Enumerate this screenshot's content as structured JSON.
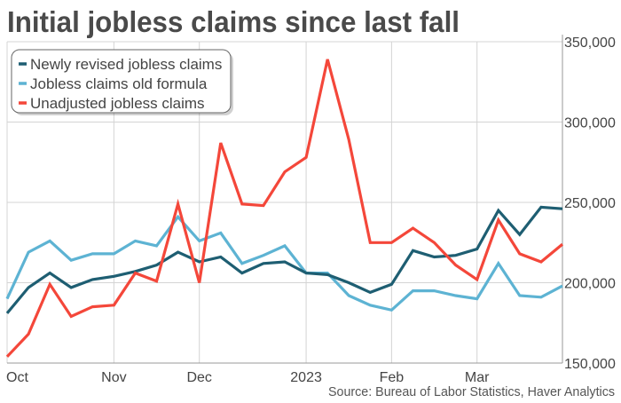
{
  "chart_data": {
    "type": "line",
    "title": "Initial jobless claims since last fall",
    "source": "Source: Bureau of Labor Statistics, Haver Analytics",
    "xlabel": "",
    "ylabel": "",
    "ylim": [
      150000,
      350000
    ],
    "y_ticks": [
      "350,000",
      "300,000",
      "250,000",
      "200,000",
      "150,000"
    ],
    "y_tick_values": [
      350000,
      300000,
      250000,
      200000,
      150000
    ],
    "y_axis_side": "right",
    "x_tick_labels": [
      "Oct",
      "Nov",
      "Dec",
      "2023",
      "Feb",
      "Mar"
    ],
    "x_tick_index": [
      0,
      5,
      9,
      14,
      18,
      22
    ],
    "x": [
      "2022-10-01",
      "2022-10-08",
      "2022-10-15",
      "2022-10-22",
      "2022-10-29",
      "2022-11-05",
      "2022-11-12",
      "2022-11-19",
      "2022-11-26",
      "2022-12-03",
      "2022-12-10",
      "2022-12-17",
      "2022-12-24",
      "2022-12-31",
      "2023-01-07",
      "2023-01-14",
      "2023-01-21",
      "2023-01-28",
      "2023-02-04",
      "2023-02-11",
      "2023-02-18",
      "2023-02-25",
      "2023-03-04",
      "2023-03-11",
      "2023-03-18",
      "2023-03-25",
      "2023-04-01"
    ],
    "grid": true,
    "legend_position": "top-left",
    "series": [
      {
        "name": "Newly revised jobless claims",
        "color": "#1e5e72",
        "values": [
          181000,
          197000,
          206000,
          197000,
          202000,
          204000,
          207000,
          211000,
          219000,
          213000,
          216000,
          206000,
          212000,
          213000,
          206000,
          205000,
          200000,
          194000,
          199000,
          220000,
          216000,
          217000,
          221000,
          245000,
          230000,
          247000,
          246000
        ]
      },
      {
        "name": "Jobless claims old formula",
        "color": "#5db3d3",
        "values": [
          190000,
          219000,
          226000,
          214000,
          218000,
          218000,
          226000,
          223000,
          241000,
          226000,
          231000,
          212000,
          217000,
          223000,
          206000,
          206000,
          192000,
          186000,
          183000,
          195000,
          195000,
          192000,
          190000,
          212000,
          192000,
          191000,
          198000
        ]
      },
      {
        "name": "Unadjusted jobless claims",
        "color": "#f4473a",
        "values": [
          154000,
          168000,
          199000,
          179000,
          185000,
          186000,
          206000,
          201000,
          249000,
          200000,
          287000,
          249000,
          248000,
          269000,
          278000,
          339000,
          289000,
          225000,
          225000,
          234000,
          225000,
          211000,
          202000,
          239000,
          218000,
          213000,
          224000
        ]
      }
    ]
  }
}
